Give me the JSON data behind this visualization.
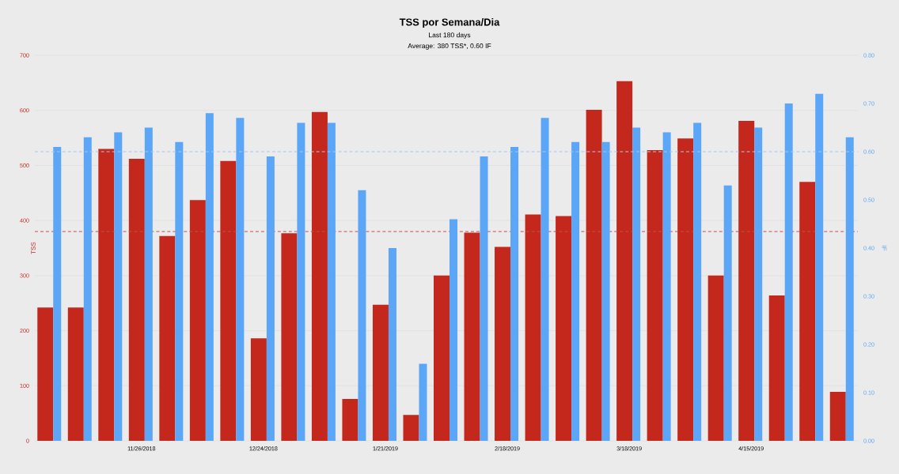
{
  "chart_data": {
    "type": "bar",
    "title": "TSS por Semana/Dia",
    "subtitle": "Last 180 days",
    "annotations": [
      "Average: 380 TSS*, 0.60 IF"
    ],
    "ylabel": "TSS",
    "y2label": "IF",
    "categories": [
      null,
      null,
      null,
      "11/26/2018",
      null,
      null,
      null,
      "12/24/2018",
      null,
      null,
      null,
      "1/21/2019",
      null,
      null,
      null,
      "2/18/2019",
      null,
      null,
      null,
      "3/18/2019",
      null,
      null,
      null,
      "4/15/2019",
      null,
      null,
      null
    ],
    "series": [
      {
        "color": "#c4281c",
        "values": [
          242,
          242,
          530,
          512,
          372,
          437,
          508,
          186,
          377,
          597,
          76,
          247,
          47,
          300,
          378,
          352,
          411,
          408,
          601,
          653,
          528,
          549,
          300,
          581,
          264,
          470,
          89
        ]
      },
      {
        "color": "#5ba6f7",
        "axis": "y2",
        "values": [
          0.61,
          0.63,
          0.64,
          0.65,
          0.62,
          0.68,
          0.67,
          0.59,
          0.66,
          0.66,
          0.52,
          0.4,
          0.16,
          0.46,
          0.59,
          0.61,
          0.67,
          0.62,
          0.62,
          0.65,
          0.64,
          0.66,
          0.53,
          0.65,
          0.7,
          0.72,
          0.63
        ]
      }
    ],
    "ylim": [
      0,
      700
    ],
    "yticks": [
      0,
      100,
      200,
      300,
      400,
      500,
      600,
      700
    ],
    "y2lim": [
      0,
      0.8
    ],
    "y2ticks": [
      {
        "value": 0,
        "label": "0.00"
      },
      {
        "value": 0.1,
        "label": "0.10"
      },
      {
        "value": 0.2,
        "label": "0.20"
      },
      {
        "value": 0.3,
        "label": "0.30"
      },
      {
        "value": 0.4,
        "label": "0.40"
      },
      {
        "value": 0.5,
        "label": "0.50"
      },
      {
        "value": 0.6,
        "label": "0.60"
      },
      {
        "value": 0.7,
        "label": "0.70"
      },
      {
        "value": 0.8,
        "label": "0.80"
      }
    ],
    "ref_lines": [
      {
        "axis": "y",
        "value": 380,
        "color": "#c0504d",
        "line_style": "dashed"
      },
      {
        "axis": "y2",
        "value": 0.6,
        "color": "#a8c8f0",
        "line_style": "dashed"
      }
    ],
    "grid": "y"
  }
}
